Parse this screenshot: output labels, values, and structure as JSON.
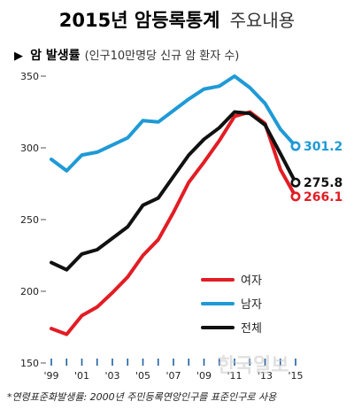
{
  "title": {
    "bold": "2015년 암등록통계",
    "light": "주요내용"
  },
  "subtitle": {
    "marker": "▶",
    "bold": "암 발생률",
    "light": "(인구10만명당 신규 암 환자 수)"
  },
  "footnote": "*연령표준화발생률: 2000년 주민등록연앙인구를 표준인구로 사용",
  "watermark": "한국일보",
  "chart_data": {
    "type": "line",
    "x": [
      "1999",
      "2000",
      "2001",
      "2002",
      "2003",
      "2004",
      "2005",
      "2006",
      "2007",
      "2008",
      "2009",
      "2010",
      "2011",
      "2012",
      "2013",
      "2014",
      "2015"
    ],
    "x_tick_labels": [
      "'99",
      "'01",
      "'03",
      "'05",
      "'07",
      "'09",
      "'11",
      "'13",
      "'15"
    ],
    "ylim": [
      150,
      350
    ],
    "y_ticks": [
      150,
      200,
      250,
      300,
      350
    ],
    "grid": false,
    "legend_position": "bottom-right",
    "series": [
      {
        "name": "여자",
        "color": "#e21d24",
        "values": [
          174,
          170,
          183,
          189,
          199,
          210,
          225,
          236,
          255,
          276,
          290,
          305,
          322,
          325,
          317,
          285,
          266.1
        ],
        "end_label": "266.1"
      },
      {
        "name": "남자",
        "color": "#1f9ad6",
        "values": [
          292,
          284,
          295,
          297,
          302,
          307,
          319,
          318,
          326,
          334,
          341,
          343,
          350,
          342,
          331,
          313,
          301.2
        ],
        "end_label": "301.2"
      },
      {
        "name": "전체",
        "color": "#111111",
        "values": [
          220,
          215,
          226,
          229,
          237,
          245,
          260,
          265,
          280,
          295,
          306,
          314,
          325,
          324,
          316,
          296,
          275.8
        ],
        "end_label": "275.8"
      }
    ]
  }
}
